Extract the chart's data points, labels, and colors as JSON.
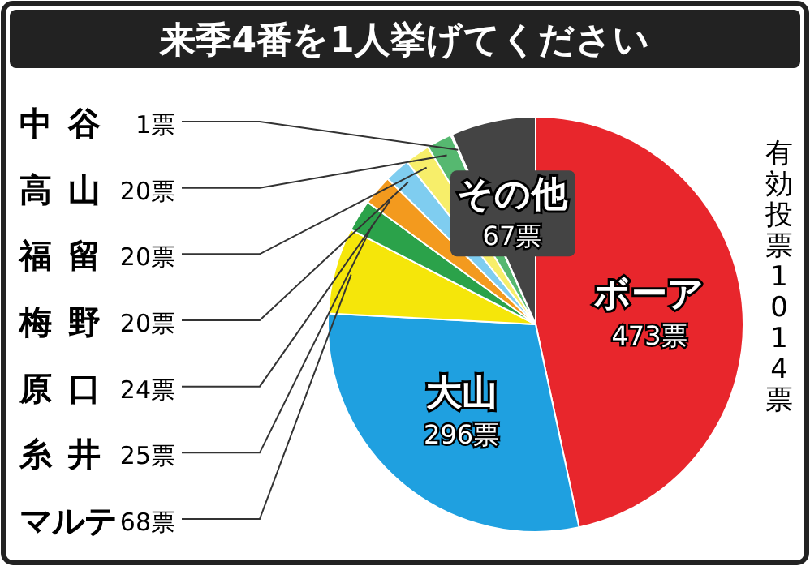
{
  "chart_data": {
    "type": "pie",
    "title": "来季4番を1人挙げてください",
    "categories": [
      "ボーア",
      "大山",
      "マルテ",
      "糸井",
      "原口",
      "梅野",
      "福留",
      "高山",
      "中谷",
      "その他"
    ],
    "values": [
      473,
      296,
      68,
      25,
      24,
      20,
      20,
      20,
      1,
      67
    ],
    "colors": [
      "#e8262c",
      "#1fa0e0",
      "#f5e60a",
      "#2ba24a",
      "#f39a1e",
      "#7fcdf0",
      "#f7ee6a",
      "#56b870",
      "#cfcfcf",
      "#444444"
    ],
    "value_labels": [
      "473票",
      "296票",
      "68票",
      "25票",
      "24票",
      "20票",
      "20票",
      "20票",
      "1票",
      "67票"
    ],
    "annotations": [
      "有効投票1014票"
    ]
  }
}
